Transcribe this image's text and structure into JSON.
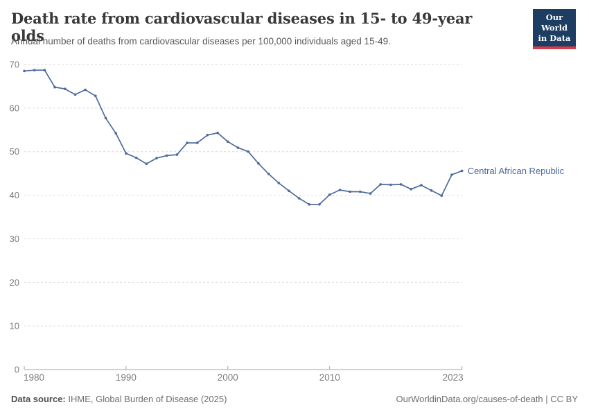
{
  "chart_data": {
    "type": "line",
    "title": "Death rate from cardiovascular diseases in 15- to 49-year olds",
    "subtitle": "Annual number of deaths from cardiovascular diseases per 100,000 individuals aged 15-49.",
    "xlabel": "",
    "ylabel": "",
    "xlim": [
      1980,
      2023
    ],
    "ylim": [
      0,
      70
    ],
    "xticks": [
      1980,
      1990,
      2000,
      2010,
      2023
    ],
    "yticks": [
      0,
      10,
      20,
      30,
      40,
      50,
      60,
      70
    ],
    "grid": "horizontal-dashed",
    "legend": "end-of-line-label",
    "series": [
      {
        "name": "Central African Republic",
        "color": "#4c6a9c",
        "x": [
          1980,
          1981,
          1982,
          1983,
          1984,
          1985,
          1986,
          1987,
          1988,
          1989,
          1990,
          1991,
          1992,
          1993,
          1994,
          1995,
          1996,
          1997,
          1998,
          1999,
          2000,
          2001,
          2002,
          2003,
          2004,
          2005,
          2006,
          2007,
          2008,
          2009,
          2010,
          2011,
          2012,
          2013,
          2014,
          2015,
          2016,
          2017,
          2018,
          2019,
          2020,
          2021,
          2022,
          2023
        ],
        "values": [
          68.5,
          68.7,
          68.7,
          64.8,
          64.4,
          63.1,
          64.2,
          62.8,
          57.7,
          54.2,
          49.6,
          48.6,
          47.2,
          48.5,
          49.1,
          49.3,
          52.0,
          52.0,
          53.8,
          54.3,
          52.3,
          50.9,
          50.0,
          47.3,
          44.9,
          42.8,
          41.0,
          39.3,
          37.9,
          37.9,
          40.1,
          41.2,
          40.8,
          40.8,
          40.4,
          42.5,
          42.4,
          42.5,
          41.4,
          42.3,
          41.1,
          39.9,
          44.7,
          45.6
        ]
      }
    ]
  },
  "logo": {
    "line1": "Our World",
    "line2": "in Data"
  },
  "footer": {
    "source_label": "Data source:",
    "source_value": " IHME, Global Burden of Disease (2025)",
    "attribution": "OurWorldinData.org/causes-of-death | CC BY"
  },
  "colors": {
    "accent_line": "#4c6a9c",
    "series_label": "#4c6a9c",
    "logo_bg": "#1d3d63",
    "logo_stripe": "#d73c4c",
    "grid": "#dadada",
    "axis": "#a3a3a3",
    "tick_text": "#7d7d7d"
  }
}
